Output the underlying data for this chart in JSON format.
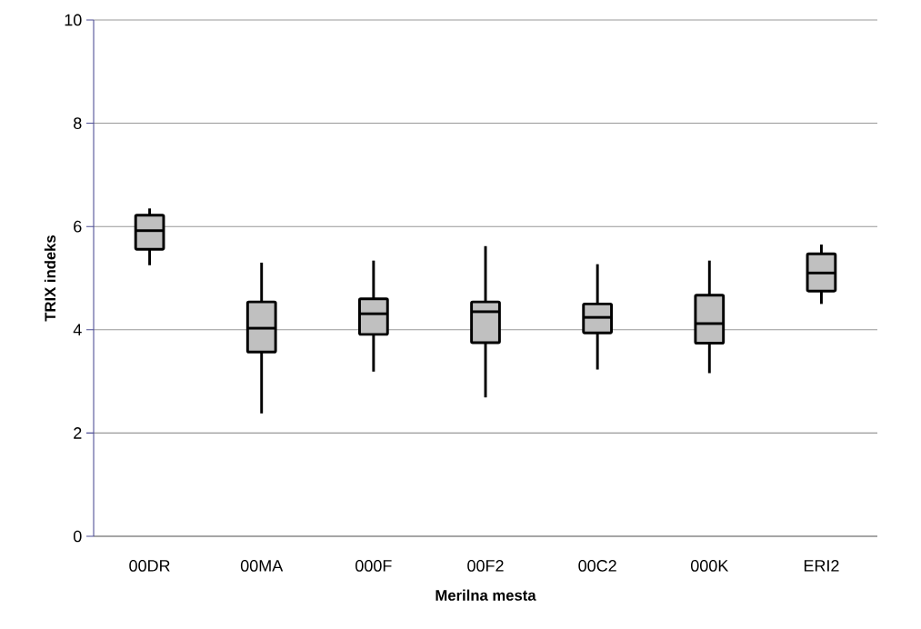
{
  "chart_data": {
    "type": "box",
    "xlabel": "Merilna mesta",
    "ylabel": "TRIX indeks",
    "categories": [
      "00DR",
      "00MA",
      "000F",
      "00F2",
      "00C2",
      "000K",
      "ERI2"
    ],
    "series": [
      {
        "color": "#c0c0c0",
        "boxes": [
          {
            "low": 5.25,
            "q1": 5.56,
            "median": 5.92,
            "q3": 6.22,
            "high": 6.35
          },
          {
            "low": 2.38,
            "q1": 3.57,
            "median": 4.03,
            "q3": 4.54,
            "high": 5.3
          },
          {
            "low": 3.19,
            "q1": 3.91,
            "median": 4.31,
            "q3": 4.6,
            "high": 5.34
          },
          {
            "low": 2.69,
            "q1": 3.75,
            "median": 4.35,
            "q3": 4.54,
            "high": 5.62
          },
          {
            "low": 3.23,
            "q1": 3.94,
            "median": 4.24,
            "q3": 4.5,
            "high": 5.27
          },
          {
            "low": 3.16,
            "q1": 3.74,
            "median": 4.12,
            "q3": 4.67,
            "high": 5.34
          },
          {
            "low": 4.5,
            "q1": 4.75,
            "median": 5.1,
            "q3": 5.47,
            "high": 5.65
          }
        ]
      }
    ],
    "ylim": [
      0,
      10
    ],
    "yticks": [
      0,
      2,
      4,
      6,
      8,
      10
    ],
    "grid": "y"
  }
}
